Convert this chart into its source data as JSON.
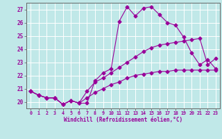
{
  "xlabel": "Windchill (Refroidissement éolien,°C)",
  "background_color": "#c0e8e8",
  "grid_color": "#ffffff",
  "line_color": "#990099",
  "axis_label_color": "#6600aa",
  "x_values": [
    0,
    1,
    2,
    3,
    4,
    5,
    6,
    7,
    8,
    9,
    10,
    11,
    12,
    13,
    14,
    15,
    16,
    17,
    18,
    19,
    20,
    21,
    22,
    23
  ],
  "line1": [
    20.8,
    20.5,
    20.3,
    20.3,
    19.8,
    20.1,
    19.9,
    19.9,
    21.6,
    22.2,
    22.5,
    26.1,
    27.2,
    26.5,
    27.1,
    27.2,
    26.6,
    26.0,
    25.8,
    24.9,
    23.7,
    22.8,
    23.2,
    22.5
  ],
  "line2": [
    20.8,
    20.5,
    20.3,
    20.3,
    19.8,
    20.1,
    19.9,
    20.8,
    21.5,
    21.8,
    22.2,
    22.6,
    23.0,
    23.4,
    23.8,
    24.1,
    24.3,
    24.4,
    24.5,
    24.6,
    24.7,
    24.8,
    22.8,
    23.3
  ],
  "line3": [
    20.8,
    20.5,
    20.3,
    20.3,
    19.8,
    20.1,
    19.9,
    20.3,
    20.7,
    21.0,
    21.3,
    21.5,
    21.8,
    22.0,
    22.1,
    22.2,
    22.3,
    22.3,
    22.4,
    22.4,
    22.4,
    22.4,
    22.4,
    22.4
  ],
  "ylim": [
    19.5,
    27.5
  ],
  "yticks": [
    20,
    21,
    22,
    23,
    24,
    25,
    26,
    27
  ],
  "xlim": [
    -0.5,
    23.5
  ]
}
